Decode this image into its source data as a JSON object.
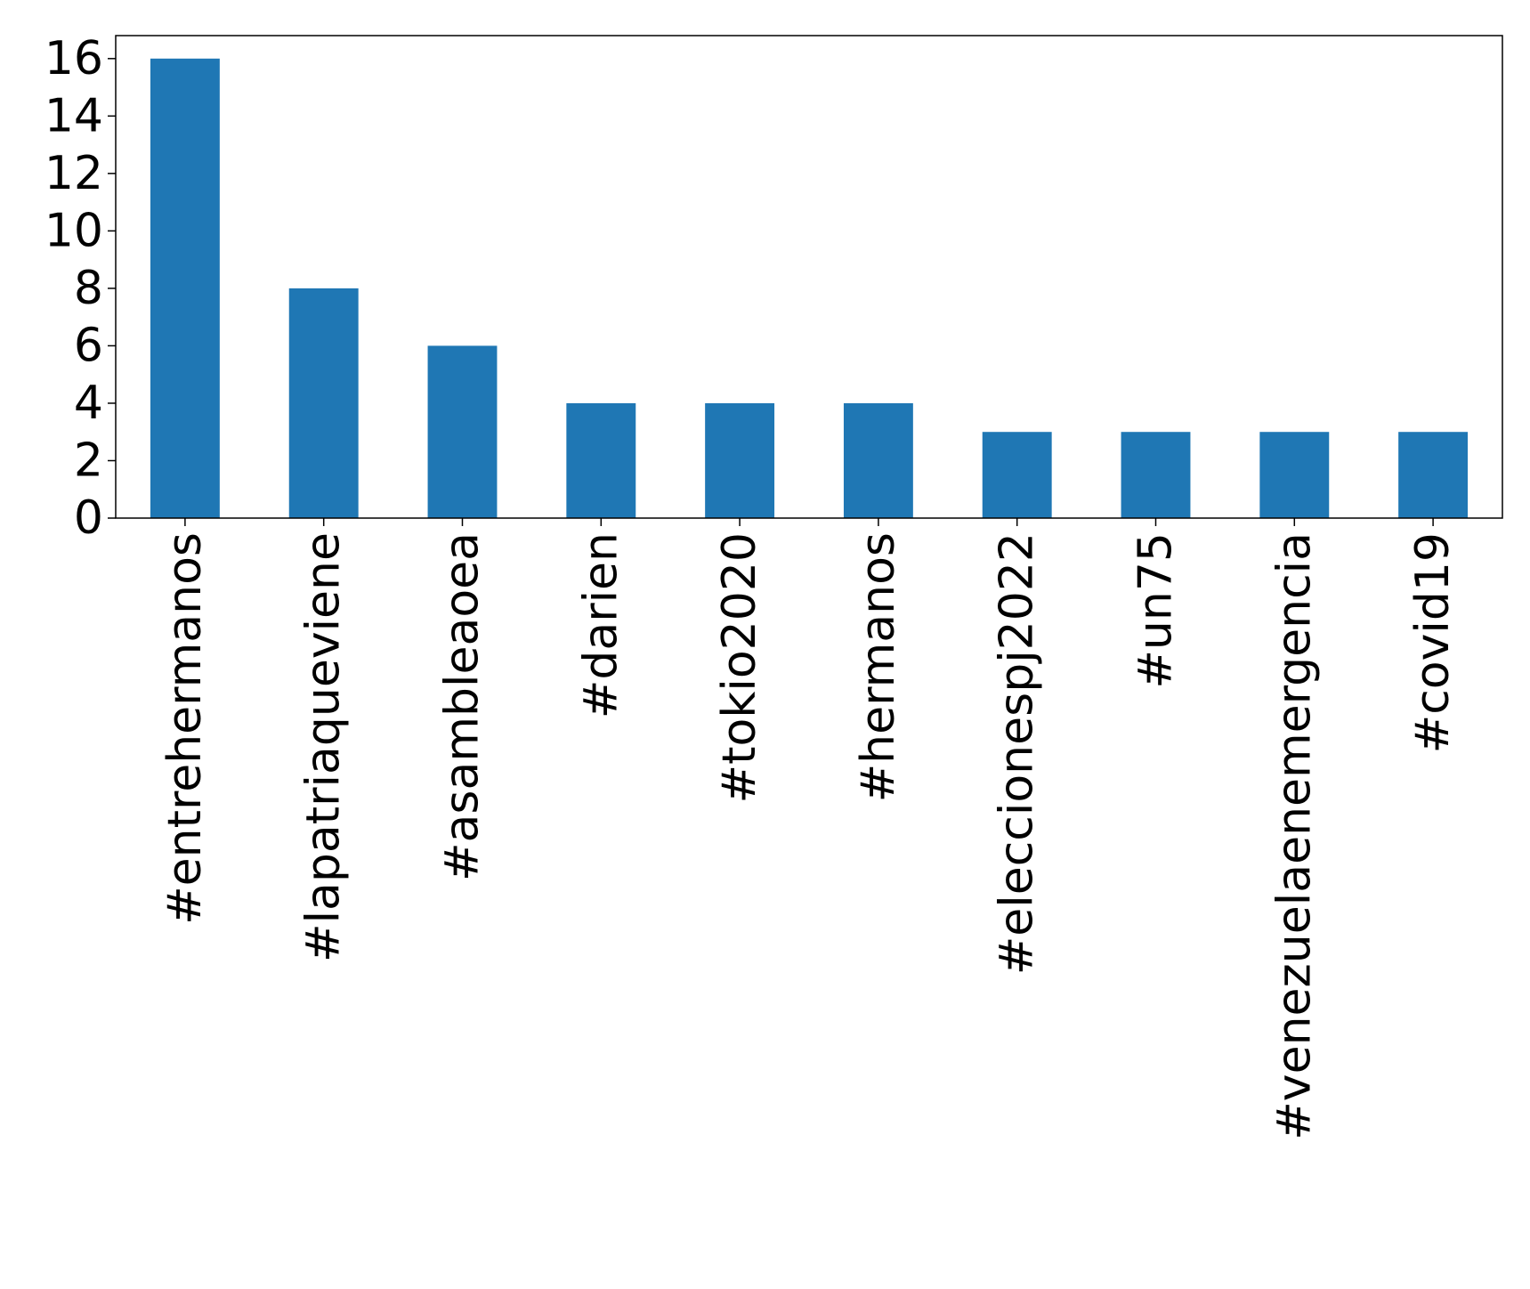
{
  "chart_data": {
    "type": "bar",
    "categories": [
      "#entrehermanos",
      "#lapatriaqueviene",
      "#asambleaoea",
      "#darien",
      "#tokio2020",
      "#hermanos",
      "#eleccionespj2022",
      "#un75",
      "#venezuelaenemergencia",
      "#covid19"
    ],
    "values": [
      16,
      8,
      6,
      4,
      4,
      4,
      3,
      3,
      3,
      3
    ],
    "title": "",
    "xlabel": "",
    "ylabel": "",
    "ylim": [
      0,
      16.8
    ],
    "yticks": [
      "0",
      "2",
      "4",
      "6",
      "8",
      "10",
      "12",
      "14",
      "16"
    ],
    "grid": false,
    "bar_color": "#1f77b4",
    "xtick_rotation": "vertical"
  }
}
